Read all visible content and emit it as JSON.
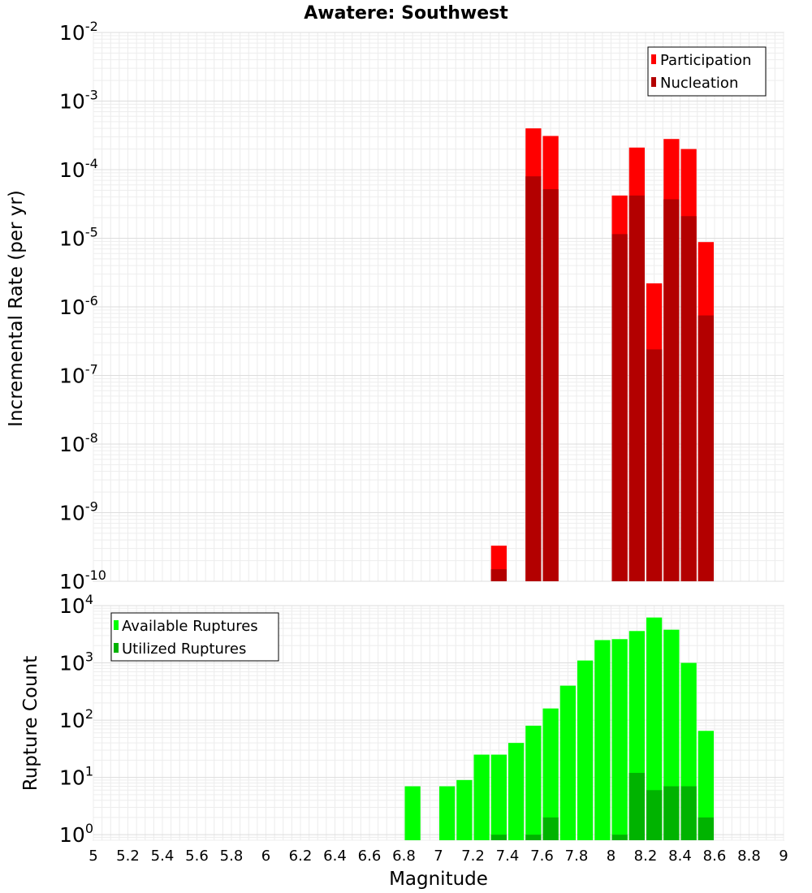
{
  "title": "Awatere: Southwest",
  "chart_data": [
    {
      "type": "bar",
      "panel": "top",
      "title": "Awatere: Southwest",
      "ylabel": "Incremental Rate (per yr)",
      "xlabel": "",
      "yscale": "log",
      "ylim": [
        1e-10,
        0.01
      ],
      "xlim": [
        5,
        9
      ],
      "bar_width": 0.1,
      "grid": true,
      "legend": "top-right",
      "y_ticks": [
        {
          "base": "10",
          "exp": "-10"
        },
        {
          "base": "10",
          "exp": "-9"
        },
        {
          "base": "10",
          "exp": "-8"
        },
        {
          "base": "10",
          "exp": "-7"
        },
        {
          "base": "10",
          "exp": "-6"
        },
        {
          "base": "10",
          "exp": "-5"
        },
        {
          "base": "10",
          "exp": "-4"
        },
        {
          "base": "10",
          "exp": "-3"
        },
        {
          "base": "10",
          "exp": "-2"
        }
      ],
      "x": [
        7.35,
        7.55,
        7.65,
        8.05,
        8.15,
        8.25,
        8.35,
        8.45,
        8.55
      ],
      "series": [
        {
          "name": "Participation",
          "color": "#ff0000",
          "values": [
            3.3e-10,
            0.0004,
            0.00031,
            4.2e-05,
            0.00021,
            2.2e-06,
            0.00028,
            0.0002,
            8.8e-06
          ]
        },
        {
          "name": "Nucleation",
          "color": "#b30000",
          "values": [
            1.5e-10,
            8e-05,
            5.2e-05,
            1.15e-05,
            4.2e-05,
            2.4e-07,
            3.7e-05,
            2.1e-05,
            7.5e-07
          ]
        }
      ]
    },
    {
      "type": "bar",
      "panel": "bottom",
      "ylabel": "Rupture Count",
      "xlabel": "Magnitude",
      "yscale": "log",
      "ylim": [
        0.8,
        10000
      ],
      "xlim": [
        5,
        9
      ],
      "bar_width": 0.1,
      "grid": true,
      "legend": "top-left",
      "y_ticks": [
        {
          "base": "10",
          "exp": "0"
        },
        {
          "base": "10",
          "exp": "1"
        },
        {
          "base": "10",
          "exp": "2"
        },
        {
          "base": "10",
          "exp": "3"
        },
        {
          "base": "10",
          "exp": "4"
        }
      ],
      "x_ticks": [
        "5",
        "5.2",
        "5.4",
        "5.6",
        "5.8",
        "6",
        "6.2",
        "6.4",
        "6.6",
        "6.8",
        "7",
        "7.2",
        "7.4",
        "7.6",
        "7.8",
        "8",
        "8.2",
        "8.4",
        "8.6",
        "8.8",
        "9"
      ],
      "x": [
        6.85,
        7.05,
        7.15,
        7.25,
        7.35,
        7.45,
        7.55,
        7.65,
        7.75,
        7.85,
        7.95,
        8.05,
        8.15,
        8.25,
        8.35,
        8.45,
        8.55
      ],
      "series": [
        {
          "name": "Available Ruptures",
          "color": "#00ff00",
          "values": [
            7,
            7,
            9,
            25,
            25,
            40,
            80,
            160,
            400,
            1100,
            2500,
            2600,
            3600,
            6200,
            3800,
            1000,
            65
          ]
        },
        {
          "name": "Utilized Ruptures",
          "color": "#00b300",
          "values": [
            0,
            0,
            0,
            0,
            1,
            0,
            1,
            2,
            0,
            0,
            0,
            1,
            12,
            6,
            7,
            7,
            2
          ]
        }
      ]
    }
  ]
}
